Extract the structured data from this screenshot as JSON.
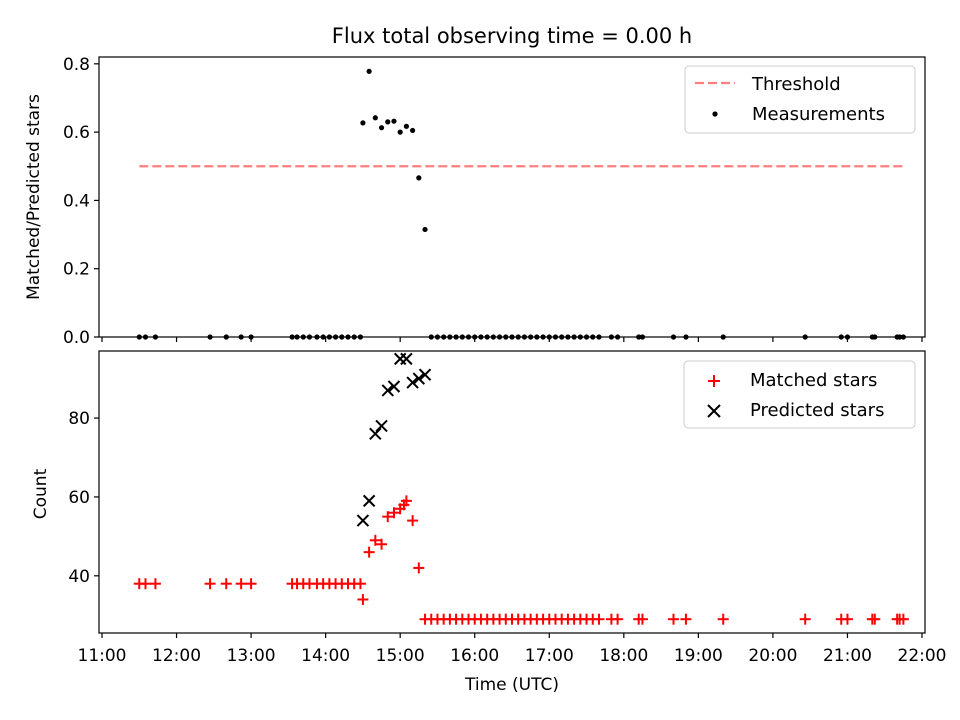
{
  "chart_data": [
    {
      "type": "scatter",
      "title": "Flux total observing time = 0.00 h",
      "xlabel": "",
      "ylabel": "Matched/Predicted stars",
      "xlim": [
        "11:00",
        "22:00"
      ],
      "ylim": [
        0,
        0.82
      ],
      "yticks": [
        0.0,
        0.2,
        0.4,
        0.6,
        0.8
      ],
      "ytick_labels": [
        "0.0",
        "0.2",
        "0.4",
        "0.6",
        "0.8"
      ],
      "legend_position": "top-right",
      "threshold": {
        "name": "Threshold",
        "color": "#ff7f7f",
        "style": "dashed",
        "y": 0.5,
        "x": [
          "11:30",
          "21:45"
        ]
      },
      "series": [
        {
          "name": "Measurements",
          "color": "#000000",
          "marker": "dot",
          "points": [
            [
              "11:30",
              0
            ],
            [
              "11:35",
              0
            ],
            [
              "11:43",
              0
            ],
            [
              "12:27",
              0
            ],
            [
              "12:40",
              0
            ],
            [
              "12:52",
              0
            ],
            [
              "13:00",
              0
            ],
            [
              "13:33",
              0
            ],
            [
              "13:37",
              0
            ],
            [
              "13:42",
              0
            ],
            [
              "13:47",
              0
            ],
            [
              "13:53",
              0
            ],
            [
              "13:58",
              0
            ],
            [
              "14:03",
              0
            ],
            [
              "14:08",
              0
            ],
            [
              "14:13",
              0
            ],
            [
              "14:18",
              0
            ],
            [
              "14:23",
              0
            ],
            [
              "14:28",
              0
            ],
            [
              "14:30",
              0.627
            ],
            [
              "14:35",
              0.778
            ],
            [
              "14:40",
              0.642
            ],
            [
              "14:45",
              0.613
            ],
            [
              "14:50",
              0.63
            ],
            [
              "14:55",
              0.632
            ],
            [
              "15:00",
              0.6
            ],
            [
              "15:05",
              0.617
            ],
            [
              "15:10",
              0.605
            ],
            [
              "15:15",
              0.466
            ],
            [
              "15:20",
              0.315
            ],
            [
              "15:25",
              0
            ],
            [
              "15:30",
              0
            ],
            [
              "15:35",
              0
            ],
            [
              "15:40",
              0
            ],
            [
              "15:45",
              0
            ],
            [
              "15:50",
              0
            ],
            [
              "15:55",
              0
            ],
            [
              "16:00",
              0
            ],
            [
              "16:05",
              0
            ],
            [
              "16:10",
              0
            ],
            [
              "16:15",
              0
            ],
            [
              "16:20",
              0
            ],
            [
              "16:25",
              0
            ],
            [
              "16:30",
              0
            ],
            [
              "16:35",
              0
            ],
            [
              "16:40",
              0
            ],
            [
              "16:45",
              0
            ],
            [
              "16:50",
              0
            ],
            [
              "16:55",
              0
            ],
            [
              "17:00",
              0
            ],
            [
              "17:05",
              0
            ],
            [
              "17:10",
              0
            ],
            [
              "17:15",
              0
            ],
            [
              "17:20",
              0
            ],
            [
              "17:25",
              0
            ],
            [
              "17:30",
              0
            ],
            [
              "17:35",
              0
            ],
            [
              "17:40",
              0
            ],
            [
              "17:50",
              0
            ],
            [
              "17:55",
              0
            ],
            [
              "18:12",
              0
            ],
            [
              "18:15",
              0
            ],
            [
              "18:40",
              0
            ],
            [
              "18:50",
              0
            ],
            [
              "19:20",
              0
            ],
            [
              "20:26",
              0
            ],
            [
              "20:55",
              0
            ],
            [
              "21:00",
              0
            ],
            [
              "21:20",
              0
            ],
            [
              "21:22",
              0
            ],
            [
              "21:40",
              0
            ],
            [
              "21:42",
              0
            ],
            [
              "21:45",
              0
            ]
          ]
        }
      ]
    },
    {
      "type": "scatter",
      "title": "",
      "xlabel": "Time (UTC)",
      "ylabel": "Count",
      "xlim": [
        "11:00",
        "22:00"
      ],
      "ylim": [
        25.5,
        97
      ],
      "yticks": [
        40,
        60,
        80
      ],
      "ytick_labels": [
        "40",
        "60",
        "80"
      ],
      "xticks": [
        "11:00",
        "12:00",
        "13:00",
        "14:00",
        "15:00",
        "16:00",
        "17:00",
        "18:00",
        "19:00",
        "20:00",
        "21:00",
        "22:00"
      ],
      "legend_position": "top-right",
      "series": [
        {
          "name": "Matched stars",
          "color": "#ff0000",
          "marker": "plus",
          "points": [
            [
              "11:30",
              38
            ],
            [
              "11:35",
              38
            ],
            [
              "11:43",
              38
            ],
            [
              "12:27",
              38
            ],
            [
              "12:40",
              38
            ],
            [
              "12:52",
              38
            ],
            [
              "13:00",
              38
            ],
            [
              "13:33",
              38
            ],
            [
              "13:37",
              38
            ],
            [
              "13:42",
              38
            ],
            [
              "13:47",
              38
            ],
            [
              "13:53",
              38
            ],
            [
              "13:58",
              38
            ],
            [
              "14:03",
              38
            ],
            [
              "14:08",
              38
            ],
            [
              "14:13",
              38
            ],
            [
              "14:18",
              38
            ],
            [
              "14:23",
              38
            ],
            [
              "14:28",
              38
            ],
            [
              "14:30",
              34
            ],
            [
              "14:35",
              46
            ],
            [
              "14:40",
              49
            ],
            [
              "14:45",
              48
            ],
            [
              "14:50",
              55
            ],
            [
              "14:55",
              56
            ],
            [
              "15:00",
              57
            ],
            [
              "15:03",
              58
            ],
            [
              "15:05",
              59
            ],
            [
              "15:10",
              54
            ],
            [
              "15:15",
              42
            ],
            [
              "15:20",
              29
            ],
            [
              "15:25",
              29
            ],
            [
              "15:30",
              29
            ],
            [
              "15:35",
              29
            ],
            [
              "15:40",
              29
            ],
            [
              "15:45",
              29
            ],
            [
              "15:50",
              29
            ],
            [
              "15:55",
              29
            ],
            [
              "16:00",
              29
            ],
            [
              "16:05",
              29
            ],
            [
              "16:10",
              29
            ],
            [
              "16:15",
              29
            ],
            [
              "16:20",
              29
            ],
            [
              "16:25",
              29
            ],
            [
              "16:30",
              29
            ],
            [
              "16:35",
              29
            ],
            [
              "16:40",
              29
            ],
            [
              "16:45",
              29
            ],
            [
              "16:50",
              29
            ],
            [
              "16:55",
              29
            ],
            [
              "17:00",
              29
            ],
            [
              "17:05",
              29
            ],
            [
              "17:10",
              29
            ],
            [
              "17:15",
              29
            ],
            [
              "17:20",
              29
            ],
            [
              "17:25",
              29
            ],
            [
              "17:30",
              29
            ],
            [
              "17:35",
              29
            ],
            [
              "17:40",
              29
            ],
            [
              "17:50",
              29
            ],
            [
              "17:55",
              29
            ],
            [
              "18:12",
              29
            ],
            [
              "18:15",
              29
            ],
            [
              "18:40",
              29
            ],
            [
              "18:50",
              29
            ],
            [
              "19:20",
              29
            ],
            [
              "20:26",
              29
            ],
            [
              "20:55",
              29
            ],
            [
              "21:00",
              29
            ],
            [
              "21:20",
              29
            ],
            [
              "21:22",
              29
            ],
            [
              "21:40",
              29
            ],
            [
              "21:42",
              29
            ],
            [
              "21:45",
              29
            ]
          ]
        },
        {
          "name": "Predicted stars",
          "color": "#000000",
          "marker": "x",
          "points": [
            [
              "14:30",
              54
            ],
            [
              "14:35",
              59
            ],
            [
              "14:40",
              76
            ],
            [
              "14:45",
              78
            ],
            [
              "14:50",
              87
            ],
            [
              "14:55",
              88
            ],
            [
              "15:00",
              95
            ],
            [
              "15:05",
              95
            ],
            [
              "15:10",
              89
            ],
            [
              "15:15",
              90
            ],
            [
              "15:20",
              91
            ]
          ]
        }
      ]
    }
  ]
}
